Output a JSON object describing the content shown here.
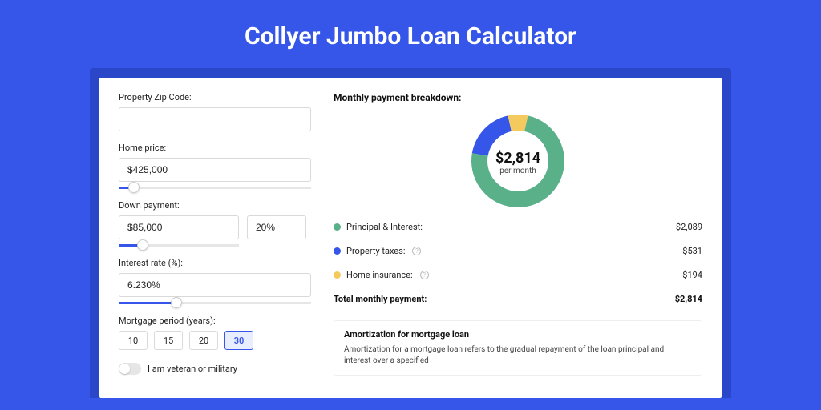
{
  "title": "Collyer Jumbo Loan Calculator",
  "colors": {
    "page_bg": "#3556e8",
    "card_wrap_bg": "#2947c8",
    "accent": "#3556e8",
    "principal": "#59b089",
    "taxes": "#3556e8",
    "insurance": "#f4c95d"
  },
  "form": {
    "zip_label": "Property Zip Code:",
    "zip_value": "",
    "home_price_label": "Home price:",
    "home_price_value": "$425,000",
    "home_price_slider_pct": 8,
    "down_payment_label": "Down payment:",
    "down_payment_value": "$85,000",
    "down_payment_pct": "20%",
    "down_payment_slider_pct": 20,
    "interest_label": "Interest rate (%):",
    "interest_value": "6.230%",
    "interest_slider_pct": 30,
    "period_label": "Mortgage period (years):",
    "periods": [
      "10",
      "15",
      "20",
      "30"
    ],
    "period_active_index": 3,
    "veteran_label": "I am veteran or military"
  },
  "breakdown": {
    "title": "Monthly payment breakdown:",
    "amount": "$2,814",
    "sub": "per month",
    "donut": {
      "size": 120,
      "thickness": 20,
      "slices": [
        {
          "color": "#59b089",
          "value": 2089
        },
        {
          "color": "#3556e8",
          "value": 531
        },
        {
          "color": "#f4c95d",
          "value": 194
        }
      ]
    },
    "items": [
      {
        "label": "Principal & Interest:",
        "value": "$2,089",
        "color": "#59b089",
        "info": false
      },
      {
        "label": "Property taxes:",
        "value": "$531",
        "color": "#3556e8",
        "info": true
      },
      {
        "label": "Home insurance:",
        "value": "$194",
        "color": "#f4c95d",
        "info": true
      }
    ],
    "total_label": "Total monthly payment:",
    "total_value": "$2,814"
  },
  "amortization": {
    "title": "Amortization for mortgage loan",
    "text": "Amortization for a mortgage loan refers to the gradual repayment of the loan principal and interest over a specified"
  }
}
